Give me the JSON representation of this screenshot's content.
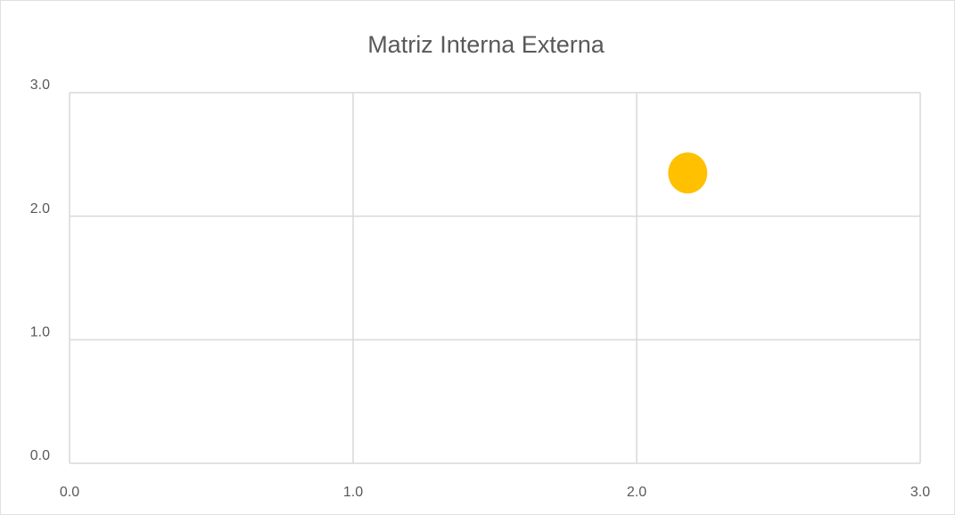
{
  "chart_data": {
    "type": "scatter",
    "title": "Matriz Interna Externa",
    "x": [
      2.18
    ],
    "values": [
      2.35
    ],
    "color": "#ffc000",
    "xlim": [
      0,
      3
    ],
    "ylim": [
      0,
      3
    ],
    "xticks": [
      {
        "value": 0,
        "label": "0.0"
      },
      {
        "value": 1,
        "label": "1.0"
      },
      {
        "value": 2,
        "label": "2.0"
      },
      {
        "value": 3,
        "label": "3.0"
      }
    ],
    "yticks": [
      {
        "value": 0,
        "label": "0.0"
      },
      {
        "value": 1,
        "label": "1.0"
      },
      {
        "value": 2,
        "label": "2.0"
      },
      {
        "value": 3,
        "label": "3.0"
      }
    ],
    "grid": true
  }
}
